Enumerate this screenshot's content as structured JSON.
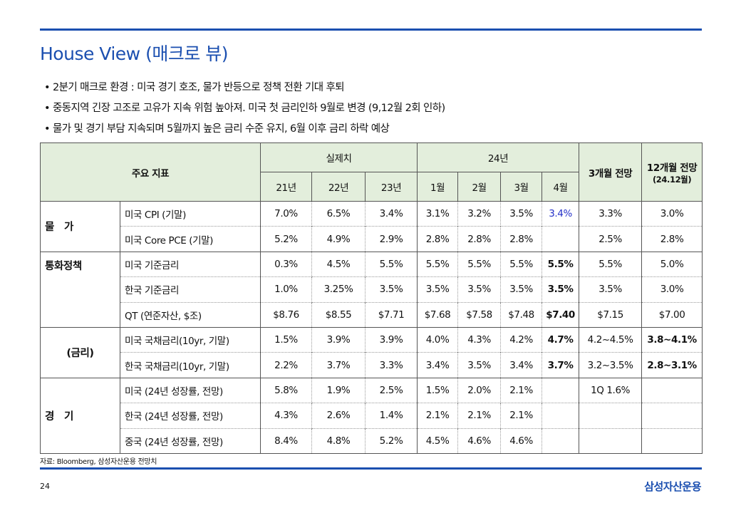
{
  "title": "House View (매크로 뷰)",
  "bullets": [
    "• 2분기 매크로 환경 : 미국 경기 호조, 물가 반등으로 정책 전환 기대 후퇴",
    "• 중동지역 긴장 고조로 고유가 지속 위험 높아져. 미국 첫 금리인하 9월로 변경 (9,12월 2회 인하)",
    "• 물가 및 경기 부담 지속되며 5월까지 높은 금리 수준 유지, 6월 이후 금리 하락 예상"
  ],
  "table": {
    "h_indicator": "주요 지표",
    "h_actual": "실제치",
    "h_24": "24년",
    "h_3m": "3개월 전망",
    "h_12m": "12개월 전망",
    "h_12m_sub": "(24.12월)",
    "years": [
      "21년",
      "22년",
      "23년"
    ],
    "months": [
      "1월",
      "2월",
      "3월",
      "4월"
    ],
    "groups": {
      "g1": "물　가",
      "g2": "통화정책",
      "g3": "(금리)",
      "g4": "경　기"
    },
    "rows": [
      {
        "name": "미국 CPI (기말)",
        "v": [
          "7.0%",
          "6.5%",
          "3.4%",
          "3.1%",
          "3.2%",
          "3.5%",
          "3.4%",
          "3.3%",
          "3.0%"
        ]
      },
      {
        "name": "미국 Core PCE (기말)",
        "v": [
          "5.2%",
          "4.9%",
          "2.9%",
          "2.8%",
          "2.8%",
          "2.8%",
          "",
          "2.5%",
          "2.8%"
        ]
      },
      {
        "name": "미국 기준금리",
        "v": [
          "0.3%",
          "4.5%",
          "5.5%",
          "5.5%",
          "5.5%",
          "5.5%",
          "5.5%",
          "5.5%",
          "5.0%"
        ]
      },
      {
        "name": "한국 기준금리",
        "v": [
          "1.0%",
          "3.25%",
          "3.5%",
          "3.5%",
          "3.5%",
          "3.5%",
          "3.5%",
          "3.5%",
          "3.0%"
        ]
      },
      {
        "name": "QT (연준자산, $조)",
        "v": [
          "$8.76",
          "$8.55",
          "$7.71",
          "$7.68",
          "$7.58",
          "$7.48",
          "$7.40",
          "$7.15",
          "$7.00"
        ]
      },
      {
        "name": "미국 국채금리(10yr, 기말)",
        "v": [
          "1.5%",
          "3.9%",
          "3.9%",
          "4.0%",
          "4.3%",
          "4.2%",
          "4.7%",
          "4.2~4.5%",
          "3.8~4.1%"
        ]
      },
      {
        "name": "한국 국채금리(10yr, 기말)",
        "v": [
          "2.2%",
          "3.7%",
          "3.3%",
          "3.4%",
          "3.5%",
          "3.4%",
          "3.7%",
          "3.2~3.5%",
          "2.8~3.1%"
        ]
      },
      {
        "name": "미국 (24년 성장률, 전망)",
        "v": [
          "5.8%",
          "1.9%",
          "2.5%",
          "1.5%",
          "2.0%",
          "2.1%",
          "",
          "1Q 1.6%",
          ""
        ]
      },
      {
        "name": "한국 (24년 성장률, 전망)",
        "v": [
          "4.3%",
          "2.6%",
          "1.4%",
          "2.1%",
          "2.1%",
          "2.1%",
          "",
          "",
          ""
        ]
      },
      {
        "name": "중국 (24년 성장률, 전망)",
        "v": [
          "8.4%",
          "4.8%",
          "5.2%",
          "4.5%",
          "4.6%",
          "4.6%",
          "",
          "",
          ""
        ]
      }
    ]
  },
  "source": "자료: Bloomberg, 삼성자산운용 전망치",
  "page_number": "24",
  "logo": "삼성자산운용",
  "colors": {
    "accent": "#1b4fb0",
    "header_bg": "#e3eedc",
    "highlight": "#2430c8"
  }
}
